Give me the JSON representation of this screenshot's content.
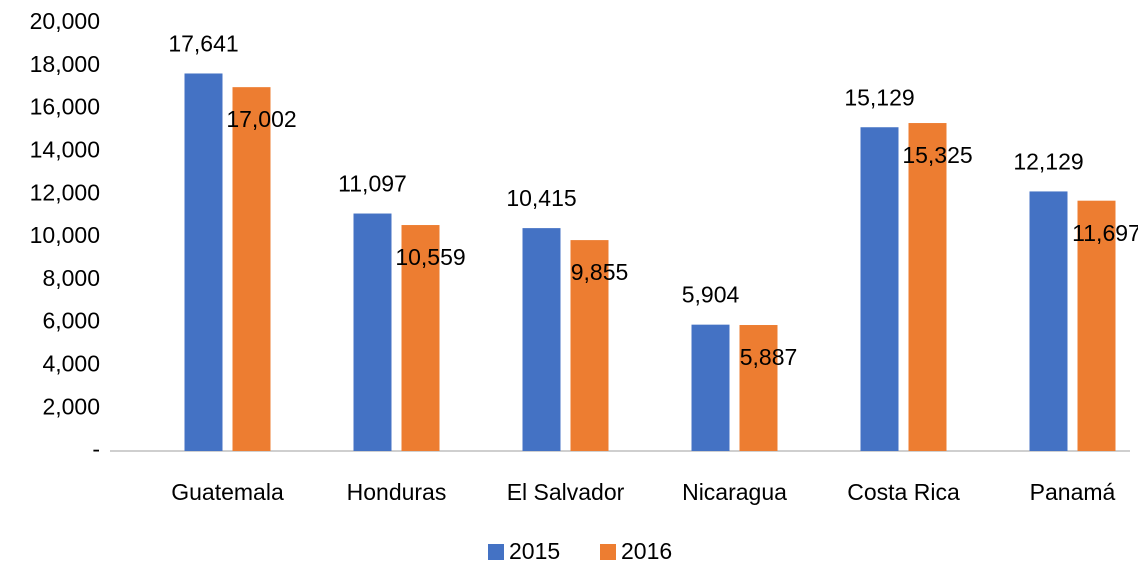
{
  "chart_data": {
    "type": "bar",
    "categories": [
      "Guatemala",
      "Honduras",
      "El Salvador",
      "Nicaragua",
      "Costa Rica",
      "Panamá"
    ],
    "series": [
      {
        "name": "2015",
        "color": "#4472c4",
        "values": [
          17641,
          11097,
          10415,
          5904,
          15129,
          12129
        ],
        "value_labels": [
          "17,641",
          "11,097",
          "10,415",
          "5,904",
          "15,129",
          "12,129"
        ]
      },
      {
        "name": "2016",
        "color": "#ed7d31",
        "values": [
          17002,
          10559,
          9855,
          5887,
          15325,
          11697
        ],
        "value_labels": [
          "17,002",
          "10,559",
          "9,855",
          "5,887",
          "15,325",
          "11,697"
        ]
      }
    ],
    "ylim": [
      0,
      20000
    ],
    "yticks": [
      {
        "value": 0,
        "label": "-"
      },
      {
        "value": 2000,
        "label": "2,000"
      },
      {
        "value": 4000,
        "label": "4,000"
      },
      {
        "value": 6000,
        "label": "6,000"
      },
      {
        "value": 8000,
        "label": "8,000"
      },
      {
        "value": 10000,
        "label": "10,000"
      },
      {
        "value": 12000,
        "label": "12,000"
      },
      {
        "value": 14000,
        "label": "14,000"
      },
      {
        "value": 16000,
        "label": "16,000"
      },
      {
        "value": 18000,
        "label": "18,000"
      },
      {
        "value": 20000,
        "label": "20,000"
      }
    ],
    "grid": false,
    "legend": "bottom"
  }
}
